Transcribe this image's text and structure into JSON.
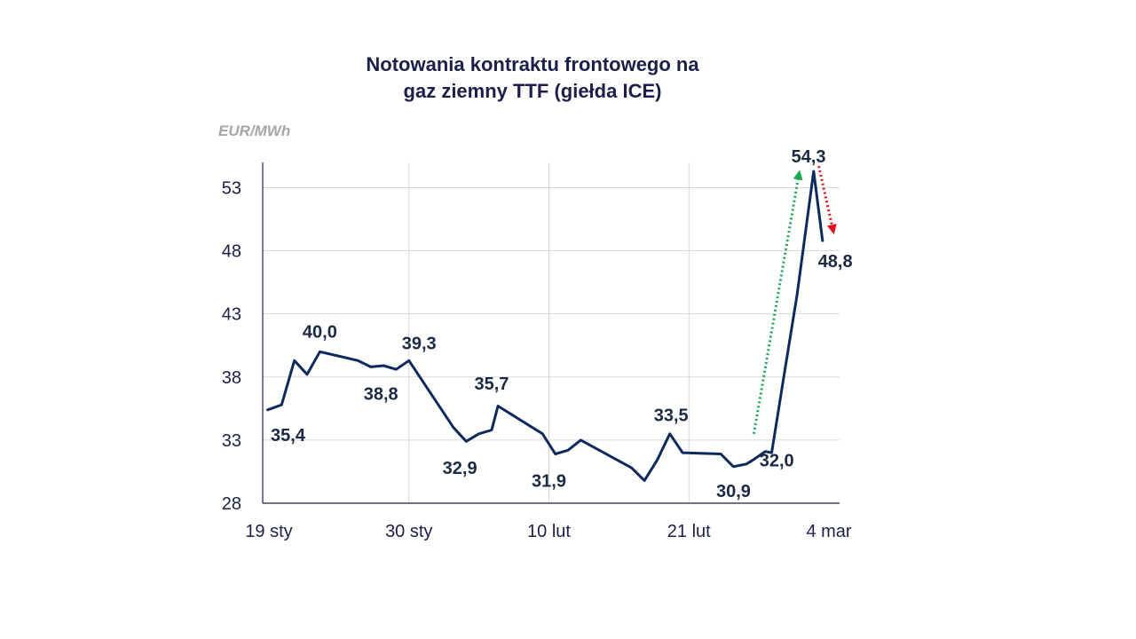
{
  "chart_data": {
    "type": "line",
    "title_lines": [
      "Notowania kontraktu frontowego na",
      "gaz ziemny TTF (giełda ICE)"
    ],
    "ylabel": "EUR/MWh",
    "xlabel": "",
    "ylim": [
      28,
      55
    ],
    "yticks": [
      28,
      33,
      38,
      43,
      48,
      53
    ],
    "ytick_labels": [
      "28",
      "33",
      "38",
      "43",
      "48",
      "53"
    ],
    "xlim": [
      0,
      44
    ],
    "xticks": [
      {
        "x": 0,
        "label": "19 sty"
      },
      {
        "x": 11,
        "label": "30 sty"
      },
      {
        "x": 22,
        "label": "10 lut"
      },
      {
        "x": 33,
        "label": "21 lut"
      },
      {
        "x": 44,
        "label": "4 mar"
      }
    ],
    "grid": true,
    "series": [
      {
        "name": "TTF",
        "color": "#0e2a5c",
        "x": [
          -0.1,
          1,
          2,
          3,
          4,
          7,
          8,
          9,
          10,
          11,
          14.5,
          15.5,
          16.5,
          17.5,
          18,
          21.5,
          22.5,
          23.5,
          24.5,
          28.5,
          29.5,
          30.5,
          31.5,
          32.5,
          35.5,
          36.5,
          37.5,
          38,
          39,
          39.5,
          40.5,
          41.5,
          42.8,
          43.5
        ],
        "values": [
          35.4,
          35.8,
          39.3,
          38.2,
          40.0,
          39.3,
          38.8,
          38.9,
          38.6,
          39.3,
          34.0,
          32.9,
          33.5,
          33.8,
          35.7,
          33.5,
          31.9,
          32.2,
          33.0,
          30.8,
          29.8,
          31.4,
          33.5,
          32.0,
          31.9,
          30.9,
          31.1,
          31.4,
          32.1,
          32.0,
          38.3,
          44.5,
          54.3,
          48.8
        ]
      }
    ],
    "data_labels": [
      {
        "text": "35,4",
        "x": 1.5,
        "y": 33.4
      },
      {
        "text": "40,0",
        "x": 4,
        "y": 41.6
      },
      {
        "text": "38,8",
        "x": 8.8,
        "y": 36.7
      },
      {
        "text": "39,3",
        "x": 11.8,
        "y": 40.7
      },
      {
        "text": "32,9",
        "x": 15,
        "y": 30.8
      },
      {
        "text": "35,7",
        "x": 17.5,
        "y": 37.5
      },
      {
        "text": "31,9",
        "x": 22,
        "y": 29.8
      },
      {
        "text": "33,5",
        "x": 31.6,
        "y": 35.0
      },
      {
        "text": "30,9",
        "x": 36.5,
        "y": 29.0
      },
      {
        "text": "32,0",
        "x": 39.9,
        "y": 31.4
      },
      {
        "text": "54,3",
        "x": 42.4,
        "y": 55.5
      },
      {
        "text": "48,8",
        "x": 44.5,
        "y": 47.2
      }
    ],
    "annotations": [
      {
        "type": "arrow",
        "direction": "up",
        "color": "#1aa84f",
        "from": {
          "x": 38.1,
          "y": 33.5
        },
        "to": {
          "x": 41.7,
          "y": 54.4
        }
      },
      {
        "type": "arrow",
        "direction": "down",
        "color": "#e0131c",
        "from": {
          "x": 43.2,
          "y": 54.7
        },
        "to": {
          "x": 44.4,
          "y": 49.3
        }
      }
    ]
  }
}
